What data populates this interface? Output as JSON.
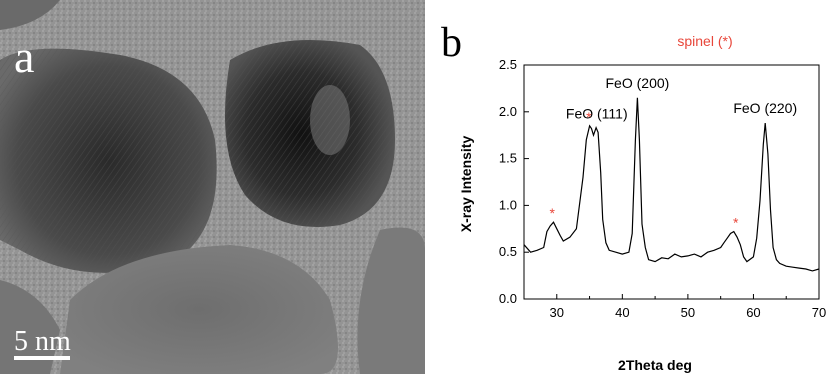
{
  "panel_a": {
    "label": "a",
    "scale_bar_label": "5 nm",
    "image_description_icon": "tem-micrograph-icon"
  },
  "panel_b": {
    "label": "b"
  },
  "chart_data": {
    "type": "line",
    "title": "",
    "xlabel": "2Theta deg",
    "ylabel": "X-ray Intensity",
    "xlim": [
      25,
      70
    ],
    "ylim": [
      0,
      2.5
    ],
    "xticks": [
      30,
      40,
      50,
      60,
      70
    ],
    "yticks": [
      0.0,
      0.5,
      1.0,
      1.5,
      2.0,
      2.5
    ],
    "grid": false,
    "legend": "spinel (*)",
    "legend_color": "#e8463a",
    "line_color": "#000000",
    "series": [
      {
        "x": [
          25,
          26,
          27,
          28,
          28.5,
          29,
          29.5,
          30,
          30.5,
          31,
          32,
          33,
          34,
          34.5,
          35,
          35.3,
          35.6,
          36,
          36.3,
          36.7,
          37,
          37.5,
          38,
          39,
          40,
          41,
          41.5,
          42,
          42.3,
          42.6,
          43,
          43.5,
          44,
          45,
          46,
          47,
          48,
          49,
          50,
          51,
          52,
          53,
          54,
          55,
          55.5,
          56,
          56.5,
          57,
          57.5,
          58,
          58.5,
          59,
          60,
          60.5,
          61,
          61.5,
          61.8,
          62.2,
          62.6,
          63,
          63.5,
          64,
          65,
          66,
          67,
          68,
          69,
          70
        ],
        "y": [
          0.58,
          0.5,
          0.52,
          0.55,
          0.72,
          0.78,
          0.82,
          0.75,
          0.68,
          0.62,
          0.66,
          0.75,
          1.3,
          1.7,
          1.85,
          1.82,
          1.75,
          1.83,
          1.78,
          1.35,
          0.85,
          0.6,
          0.52,
          0.5,
          0.48,
          0.5,
          0.7,
          1.7,
          2.15,
          1.7,
          0.8,
          0.55,
          0.42,
          0.4,
          0.44,
          0.43,
          0.48,
          0.45,
          0.46,
          0.48,
          0.45,
          0.5,
          0.52,
          0.55,
          0.6,
          0.65,
          0.7,
          0.72,
          0.66,
          0.58,
          0.45,
          0.4,
          0.45,
          0.65,
          1.05,
          1.65,
          1.88,
          1.55,
          0.95,
          0.55,
          0.42,
          0.38,
          0.35,
          0.34,
          0.33,
          0.32,
          0.3,
          0.32
        ]
      }
    ],
    "annotations": [
      {
        "text": "FeO (111)",
        "x": 36.1,
        "y": 1.82
      },
      {
        "text": "FeO (200)",
        "x": 42.3,
        "y": 2.15
      },
      {
        "text": "FeO (220)",
        "x": 61.8,
        "y": 1.88
      }
    ],
    "spinel_markers": [
      {
        "text": "*",
        "x": 29.3,
        "y": 0.82
      },
      {
        "text": "*",
        "x": 34.9,
        "y": 1.85
      },
      {
        "text": "*",
        "x": 57.3,
        "y": 0.72
      }
    ]
  }
}
